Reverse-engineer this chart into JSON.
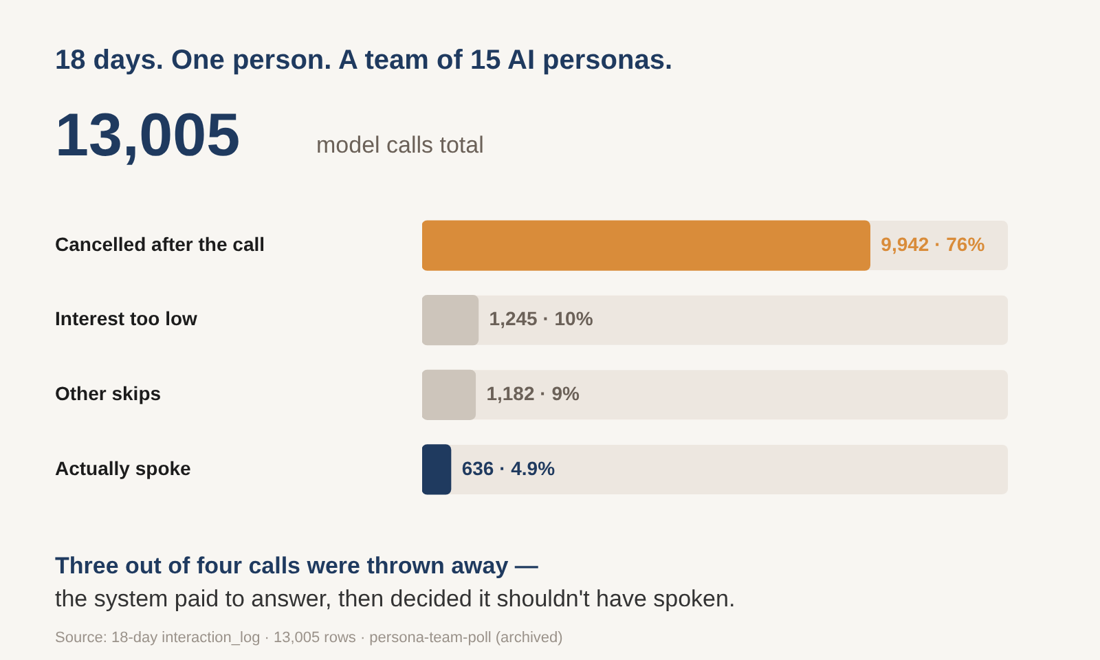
{
  "chart_data": {
    "type": "bar",
    "orientation": "horizontal",
    "title": "18 days. One person. A team of 15 AI personas.",
    "subtitle": "13,005",
    "annotations": [
      "model calls total",
      "Three out of four calls were thrown away —",
      "the system paid to answer, then decided it shouldn't have spoken.",
      "Source: 18-day interaction_log · 13,005 rows · persona-team-poll (archived)"
    ],
    "categories": [
      "Cancelled after the call",
      "Interest too low",
      "Other skips",
      "Actually spoke"
    ],
    "values": [
      9942,
      1245,
      1182,
      636
    ],
    "colors": [
      "#d98c3a",
      "#cdc5bb",
      "#cdc5bb",
      "#1f3a5f"
    ],
    "value_labels": [
      "9,942 · 76%",
      "1,245 · 10%",
      "1,182 · 9%",
      "636 · 4.9%"
    ],
    "xlim": [
      0,
      13005
    ],
    "tick_labels": "y",
    "grid": false,
    "legend": false
  }
}
